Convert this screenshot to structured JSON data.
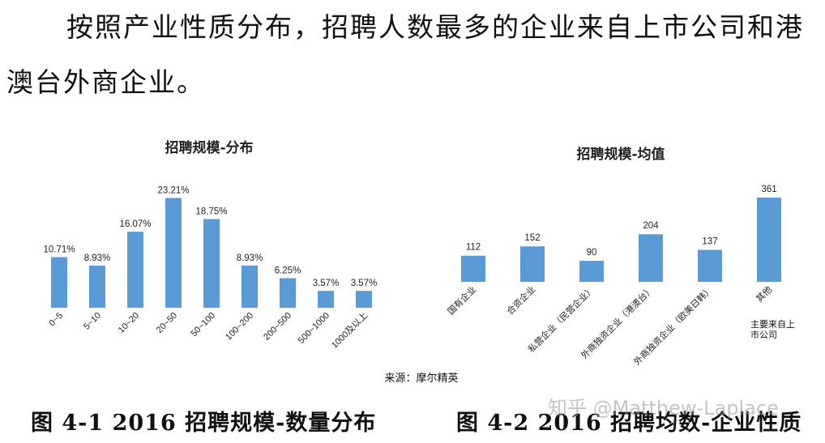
{
  "paragraph": {
    "line1": "按照产业性质分布，招聘人数最多的企业来自上市公司和港",
    "line2": "澳台外商企业。"
  },
  "chart_data": [
    {
      "type": "bar",
      "title": "招聘规模-分布",
      "categories": [
        "0~5",
        "5~10",
        "10~20",
        "20~50",
        "50~100",
        "100~200",
        "200~500",
        "500~1000",
        "1000及以上"
      ],
      "values": [
        10.71,
        8.93,
        16.07,
        23.21,
        18.75,
        8.93,
        6.25,
        3.57,
        3.57
      ],
      "value_labels": [
        "10.71%",
        "8.93%",
        "16.07%",
        "23.21%",
        "18.75%",
        "8.93%",
        "6.25%",
        "3.57%",
        "3.57%"
      ],
      "ylim": [
        0,
        25
      ],
      "grid": false,
      "legend": "none",
      "color": "#5b9bd5",
      "source": "来源：摩尔精英"
    },
    {
      "type": "bar",
      "title": "招聘规模-均值",
      "categories": [
        "国有企业",
        "合资企业",
        "私营企业（民营企业）",
        "外商独资企业（港澳台）",
        "外商独资企业（欧美日韩）",
        "其他"
      ],
      "values": [
        112,
        152,
        90,
        204,
        137,
        361
      ],
      "value_labels": [
        "112",
        "152",
        "90",
        "204",
        "137",
        "361"
      ],
      "ylim": [
        0,
        400
      ],
      "grid": false,
      "legend": "none",
      "color": "#5b9bd5",
      "annotation": "主要来自上市公司"
    }
  ],
  "captions": {
    "fig1": "图 4-1   2016 招聘规模-数量分布",
    "fig2": "图 4-2   2016 招聘均数-企业性质"
  },
  "watermark": "知乎 @Matthew-Laplace"
}
